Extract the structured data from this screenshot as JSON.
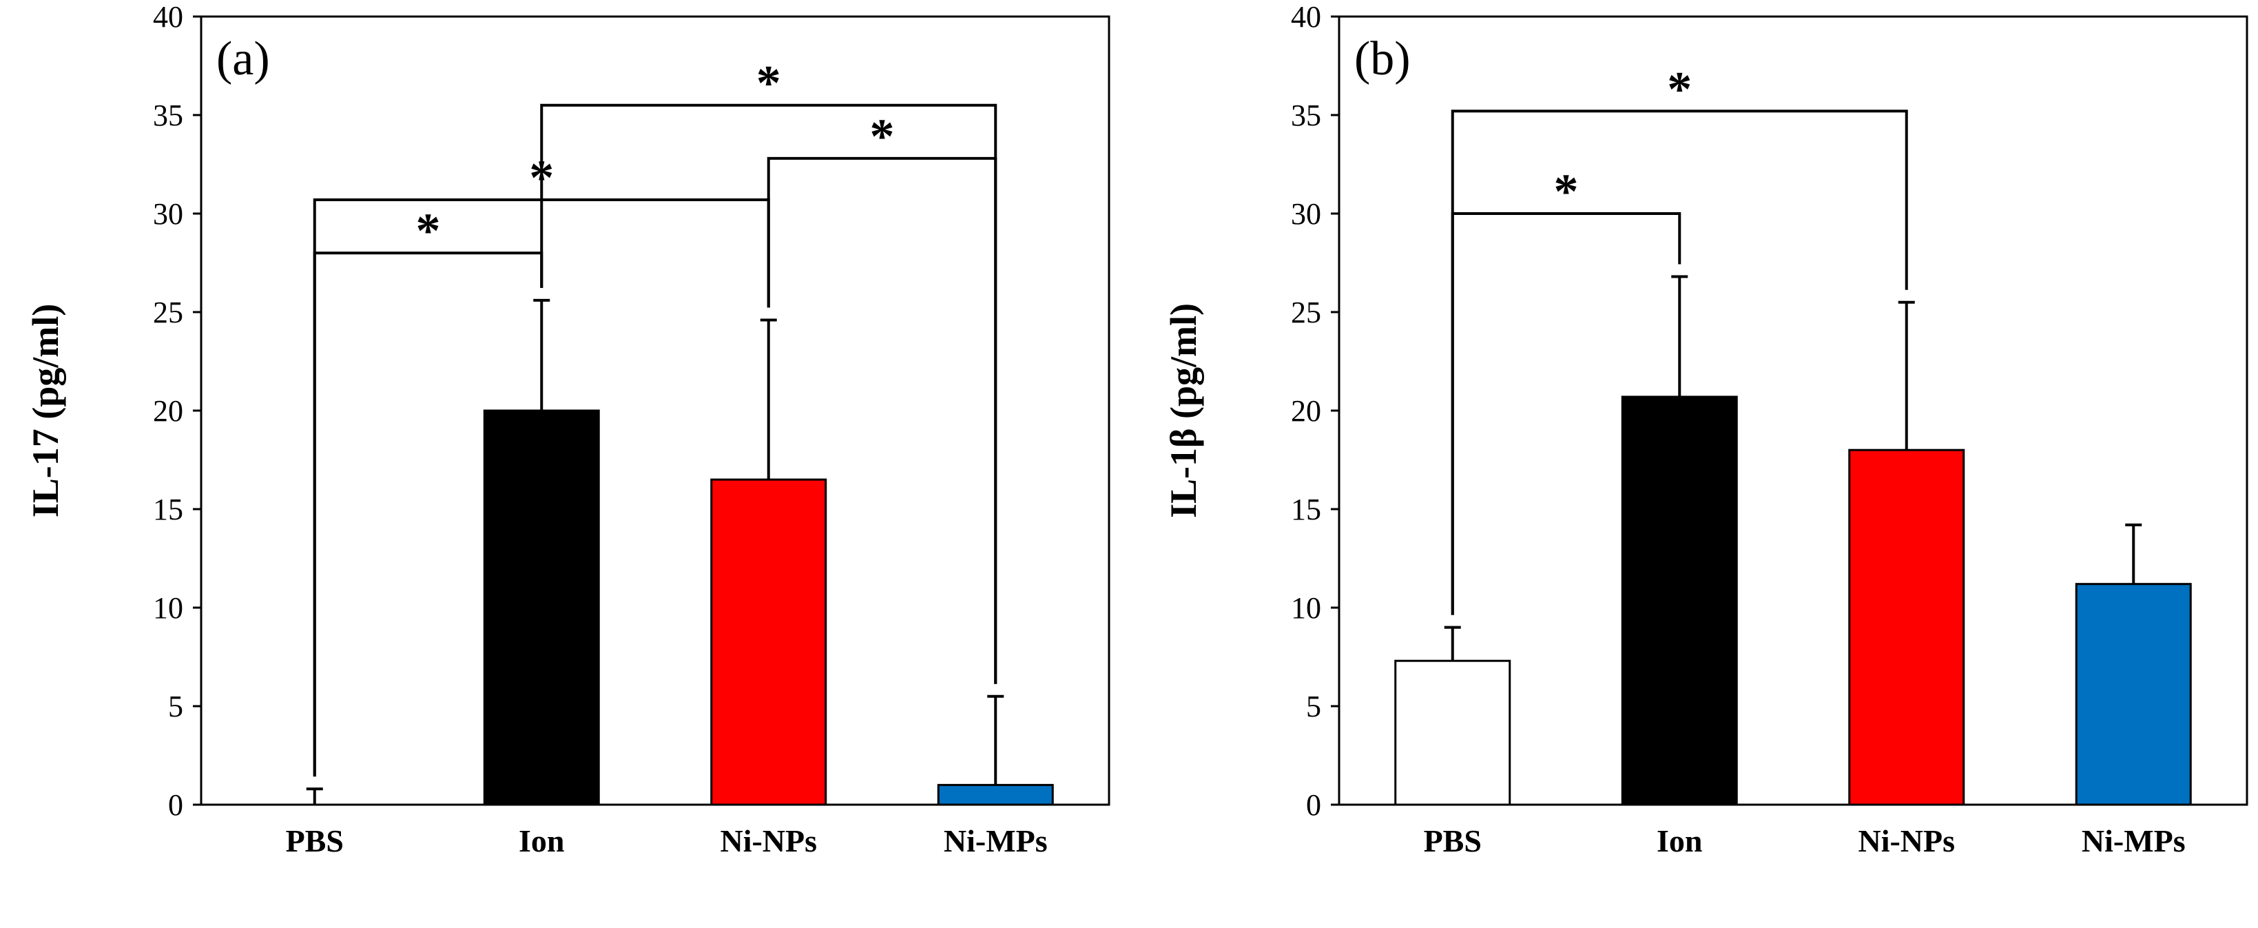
{
  "chart_data": [
    {
      "type": "bar",
      "panel_label": "(a)",
      "title": "",
      "xlabel": "",
      "ylabel": "IL-17 (pg/ml)",
      "ylim": [
        0,
        40
      ],
      "yticks": [
        0,
        5,
        10,
        15,
        20,
        25,
        30,
        35,
        40
      ],
      "categories": [
        "PBS",
        "Ion",
        "Ni-NPs",
        "Ni-MPs"
      ],
      "values": [
        0,
        20.0,
        16.5,
        1.0
      ],
      "errors": [
        0.8,
        5.6,
        8.1,
        4.5
      ],
      "colors": [
        "#ffffff",
        "#000000",
        "#ff0000",
        "#0070c0"
      ],
      "significance": [
        {
          "from": 0,
          "to": 1,
          "label": "*",
          "level": 28.0
        },
        {
          "from": 0,
          "to": 2,
          "label": "*",
          "level": 30.7
        },
        {
          "from": 2,
          "to": 3,
          "label": "*",
          "level": 32.8
        },
        {
          "from": 1,
          "to": 3,
          "label": "*",
          "level": 35.5
        }
      ]
    },
    {
      "type": "bar",
      "panel_label": "(b)",
      "title": "",
      "xlabel": "",
      "ylabel": "IL-1β (pg/ml)",
      "ylim": [
        0,
        40
      ],
      "yticks": [
        0,
        5,
        10,
        15,
        20,
        25,
        30,
        35,
        40
      ],
      "categories": [
        "PBS",
        "Ion",
        "Ni-NPs",
        "Ni-MPs"
      ],
      "values": [
        7.3,
        20.7,
        18.0,
        11.2
      ],
      "errors": [
        1.7,
        6.1,
        7.5,
        3.0
      ],
      "colors": [
        "#ffffff",
        "#000000",
        "#ff0000",
        "#0070c0"
      ],
      "significance": [
        {
          "from": 0,
          "to": 1,
          "label": "*",
          "level": 30.0
        },
        {
          "from": 0,
          "to": 2,
          "label": "*",
          "level": 35.2
        }
      ]
    }
  ]
}
